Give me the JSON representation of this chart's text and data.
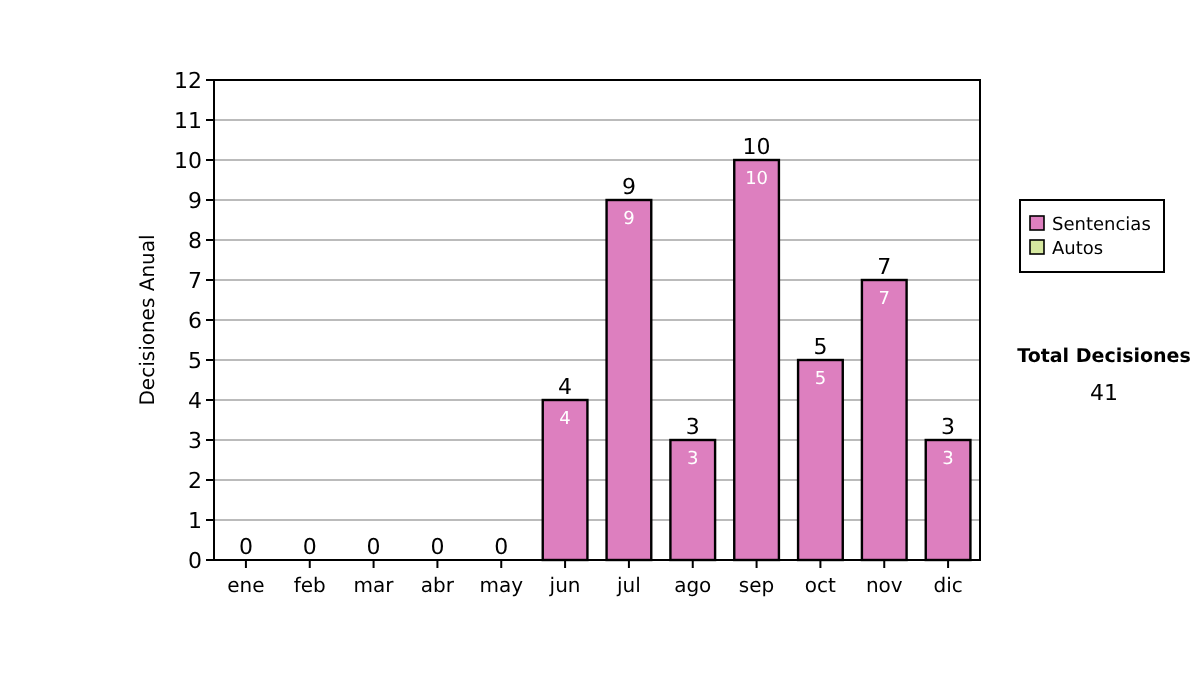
{
  "chart_data": {
    "type": "bar",
    "stacked": true,
    "ylabel": "Decisiones Anual",
    "categories": [
      "ene",
      "feb",
      "mar",
      "abr",
      "may",
      "jun",
      "jul",
      "ago",
      "sep",
      "oct",
      "nov",
      "dic"
    ],
    "series": [
      {
        "name": "Sentencias",
        "color": "#dd7fbf",
        "values": [
          0,
          0,
          0,
          0,
          0,
          4,
          9,
          3,
          10,
          5,
          7,
          3
        ],
        "value_labels": [
          null,
          null,
          null,
          null,
          null,
          "4",
          "9",
          "3",
          "10",
          "5",
          "7",
          "3"
        ]
      },
      {
        "name": "Autos",
        "color": "#d6e8a0",
        "values": [
          0,
          0,
          0,
          0,
          0,
          0,
          0,
          0,
          0,
          0,
          0,
          0
        ]
      }
    ],
    "totals": [
      "0",
      "0",
      "0",
      "0",
      "0",
      "4",
      "9",
      "3",
      "10",
      "5",
      "7",
      "3"
    ],
    "ylim": [
      0,
      12
    ],
    "yticks": [
      0,
      1,
      2,
      3,
      4,
      5,
      6,
      7,
      8,
      9,
      10,
      11,
      12
    ],
    "grid": "y",
    "legend": "right",
    "annotations": [
      "Total Decisiones",
      "41"
    ]
  }
}
